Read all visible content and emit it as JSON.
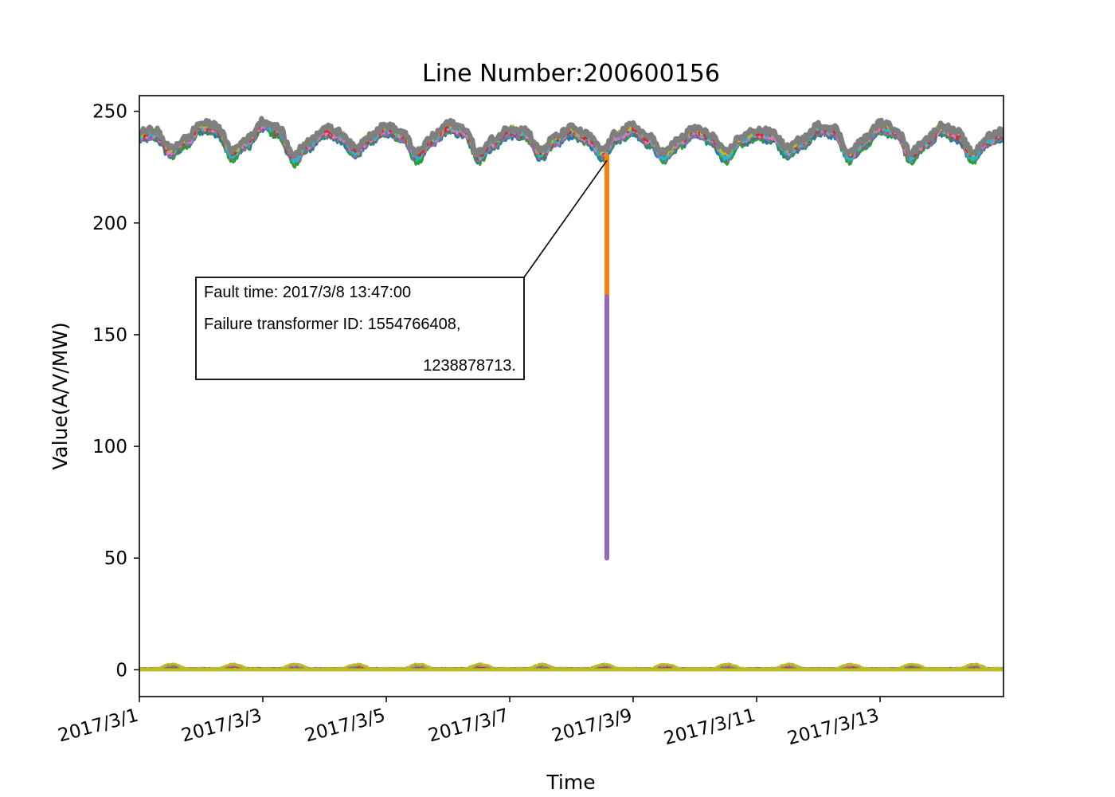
{
  "chart_data": {
    "type": "line",
    "title": "Line Number:200600156",
    "xlabel": "Time",
    "ylabel": "Value(A/V/MW)",
    "x_unit": "day",
    "xlim": [
      "2017/3/1",
      "2017/3/15"
    ],
    "ylim": [
      -12,
      257
    ],
    "xticks": [
      "2017/3/1",
      "2017/3/3",
      "2017/3/5",
      "2017/3/7",
      "2017/3/9",
      "2017/3/11",
      "2017/3/13"
    ],
    "yticks": [
      0,
      50,
      100,
      150,
      200,
      250
    ],
    "grid": false,
    "voltage_series_colors": [
      "#1f77b4",
      "#2ca02c",
      "#9467bd",
      "#8c564b",
      "#e377c2",
      "#17becf",
      "#d62728",
      "#bcbd22",
      "#7f7f7f"
    ],
    "low_series_colors": [
      "#1f77b4",
      "#2ca02c",
      "#d62728",
      "#9467bd",
      "#e377c2",
      "#7f7f7f",
      "#bcbd22"
    ],
    "voltage_profile": [
      [
        "2017/3/1 00:00",
        239
      ],
      [
        "2017/3/1 06:00",
        240
      ],
      [
        "2017/3/1 12:00",
        232
      ],
      [
        "2017/3/1 18:00",
        236
      ],
      [
        "2017/3/2 00:00",
        243
      ],
      [
        "2017/3/2 06:00",
        242
      ],
      [
        "2017/3/2 12:00",
        231
      ],
      [
        "2017/3/2 18:00",
        236
      ],
      [
        "2017/3/3 00:00",
        244
      ],
      [
        "2017/3/3 06:00",
        241
      ],
      [
        "2017/3/3 12:00",
        229
      ],
      [
        "2017/3/3 18:00",
        235
      ],
      [
        "2017/3/4 00:00",
        241
      ],
      [
        "2017/3/4 06:00",
        239
      ],
      [
        "2017/3/4 12:00",
        232
      ],
      [
        "2017/3/4 18:00",
        238
      ],
      [
        "2017/3/5 00:00",
        242
      ],
      [
        "2017/3/5 06:00",
        239
      ],
      [
        "2017/3/5 12:00",
        230
      ],
      [
        "2017/3/5 18:00",
        237
      ],
      [
        "2017/3/6 00:00",
        243
      ],
      [
        "2017/3/6 06:00",
        241
      ],
      [
        "2017/3/6 12:00",
        230
      ],
      [
        "2017/3/6 18:00",
        236
      ],
      [
        "2017/3/7 00:00",
        241
      ],
      [
        "2017/3/7 06:00",
        240
      ],
      [
        "2017/3/7 12:00",
        231
      ],
      [
        "2017/3/7 18:00",
        237
      ],
      [
        "2017/3/8 00:00",
        241
      ],
      [
        "2017/3/8 06:00",
        238
      ],
      [
        "2017/3/8 12:00",
        231
      ],
      [
        "2017/3/8 18:00",
        239
      ],
      [
        "2017/3/9 00:00",
        242
      ],
      [
        "2017/3/9 06:00",
        237
      ],
      [
        "2017/3/9 12:00",
        230
      ],
      [
        "2017/3/9 18:00",
        236
      ],
      [
        "2017/3/10 00:00",
        241
      ],
      [
        "2017/3/10 06:00",
        238
      ],
      [
        "2017/3/10 12:00",
        230
      ],
      [
        "2017/3/10 18:00",
        237
      ],
      [
        "2017/3/11 00:00",
        240
      ],
      [
        "2017/3/11 06:00",
        239
      ],
      [
        "2017/3/11 12:00",
        232
      ],
      [
        "2017/3/11 18:00",
        236
      ],
      [
        "2017/3/12 00:00",
        242
      ],
      [
        "2017/3/12 06:00",
        241
      ],
      [
        "2017/3/12 12:00",
        230
      ],
      [
        "2017/3/12 18:00",
        236
      ],
      [
        "2017/3/13 00:00",
        243
      ],
      [
        "2017/3/13 06:00",
        241
      ],
      [
        "2017/3/13 12:00",
        230
      ],
      [
        "2017/3/13 18:00",
        236
      ],
      [
        "2017/3/14 00:00",
        242
      ],
      [
        "2017/3/14 06:00",
        239
      ],
      [
        "2017/3/14 12:00",
        230
      ],
      [
        "2017/3/14 18:00",
        237
      ],
      [
        "2017/3/15 00:00",
        240
      ]
    ],
    "low_level_range": [
      0,
      3
    ],
    "fault_drop": {
      "time": "2017/3/8 13:47",
      "series": [
        {
          "color": "#ff7f0e",
          "from": 230,
          "to": 167
        },
        {
          "color": "#9467bd",
          "from": 167,
          "to": 50
        }
      ]
    },
    "annotation": {
      "lines": [
        "Fault time: 2017/3/8 13:47:00",
        "Failure transformer ID: 1554766408,",
        "1238878713."
      ],
      "target": [
        "2017/3/8 13:47",
        228
      ]
    }
  }
}
